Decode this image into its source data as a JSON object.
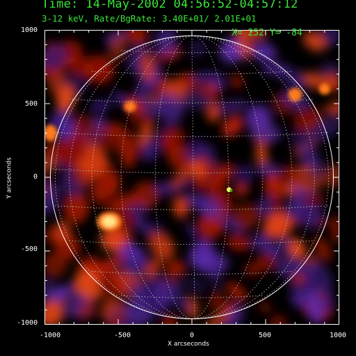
{
  "header": {
    "time_line": "Time: 14-May-2002 04:56:52-04:57:12",
    "band_line": "3-12 keV, Rate/BgRate:  3.40E+01/  2.01E+01",
    "cursor": "X=  252 Y=  -84"
  },
  "axes": {
    "xlabel": "X arcseconds",
    "ylabel": "Y arcseconds",
    "xlim": [
      -1000,
      1000
    ],
    "ylim": [
      -1000,
      1000
    ],
    "xticks": [
      "-1000",
      "-500",
      "0",
      "500",
      "1000"
    ],
    "yticks": [
      "1000",
      "500",
      "0",
      "-500",
      "-1000"
    ]
  },
  "image": {
    "colormap": "red-temperature-with-purple-negatives",
    "limb_color": "#ffffff",
    "grid_color": "#c8c8c8",
    "source": {
      "x": 252,
      "y": -84
    }
  }
}
